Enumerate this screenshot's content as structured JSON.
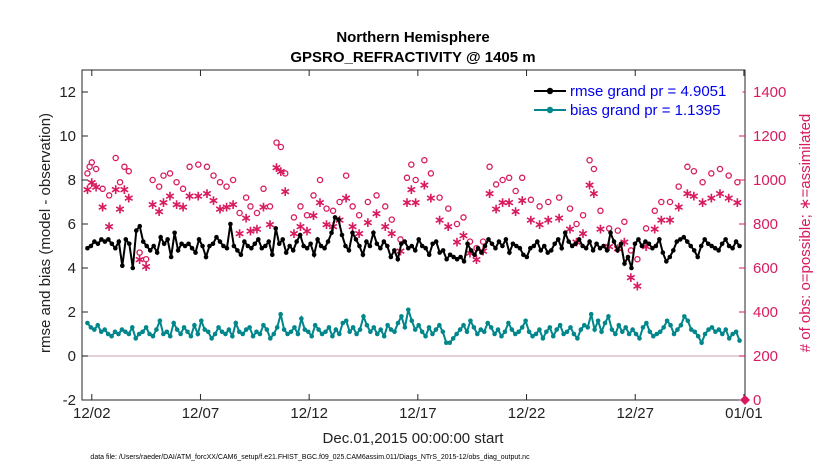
{
  "chart_data": {
    "type": "line",
    "title": "Northern Hemisphere",
    "subtitle": "GPSRO_REFRACTIVITY @ 1405 m",
    "xlabel": "Dec.01,2015 00:00:00 start",
    "ylabel": "rmse and bias (model - observation)",
    "ylabel_right": "# of obs: o=possible; ∗=assimilated",
    "footnote": "data file: /Users/raeder/DAI/ATM_forcXX/CAM6_setup/f.e21.FHIST_BGC.f09_025.CAM6assim.011/Diags_NTrS_2015-12/obs_diag_output.nc",
    "x_ticks": [
      "12/02",
      "12/07",
      "12/12",
      "12/17",
      "12/22",
      "12/27",
      "01/01"
    ],
    "x_tick_days": [
      1,
      6,
      11,
      16,
      21,
      26,
      31
    ],
    "xlim": [
      0.55,
      31.05
    ],
    "ylim": [
      -2,
      13
    ],
    "y_ticks": [
      -2,
      0,
      2,
      4,
      6,
      8,
      10,
      12
    ],
    "ylim_right": [
      0,
      1500
    ],
    "y_ticks_right": [
      0,
      200,
      400,
      600,
      800,
      1000,
      1200,
      1400
    ],
    "zero_line": 0,
    "legend_location": "top-right",
    "colors": {
      "rmse": "#000000",
      "bias": "#00868b",
      "obs": "#d81b60",
      "zero": "#d8b8bf"
    },
    "series": [
      {
        "name": "rmse grand pr = 4.9051",
        "color": "#000000",
        "marker": "filled-circle",
        "values": [
          4.9,
          5.0,
          5.2,
          5.1,
          5.3,
          5.2,
          5.3,
          5.1,
          4.9,
          5.2,
          4.1,
          5.3,
          5.1,
          4.0,
          5.7,
          5.9,
          5.2,
          5.0,
          4.8,
          5.0,
          4.7,
          5.4,
          5.1,
          5.3,
          4.5,
          5.6,
          4.8,
          5.1,
          5.0,
          5.1,
          4.9,
          4.7,
          5.3,
          5.0,
          4.5,
          5.0,
          5.1,
          5.4,
          5.2,
          5.0,
          4.9,
          6.0,
          5.0,
          4.8,
          4.6,
          5.2,
          5.0,
          4.9,
          5.1,
          5.3,
          4.9,
          5.0,
          5.2,
          4.6,
          5.8,
          5.1,
          5.3,
          4.7,
          5.0,
          4.8,
          5.2,
          5.5,
          5.0,
          4.9,
          5.1,
          4.6,
          5.3,
          5.0,
          4.9,
          5.2,
          5.6,
          6.3,
          6.2,
          5.5,
          5.0,
          4.8,
          5.6,
          5.3,
          5.0,
          4.6,
          5.2,
          5.0,
          5.6,
          5.1,
          4.9,
          5.2,
          5.0,
          4.5,
          4.8,
          4.4,
          5.1,
          5.2,
          4.9,
          5.0,
          4.8,
          5.3,
          5.0,
          4.9,
          4.6,
          5.1,
          5.2,
          4.7,
          4.8,
          4.4,
          4.6,
          4.5,
          4.4,
          4.5,
          4.3,
          5.1,
          4.8,
          4.6,
          4.9,
          4.7,
          5.0,
          5.3,
          5.1,
          4.9,
          5.2,
          5.0,
          5.3,
          4.7,
          5.1,
          5.0,
          4.9,
          4.6,
          4.5,
          4.9,
          5.0,
          5.2,
          4.8,
          5.0,
          4.7,
          4.8,
          5.1,
          5.3,
          4.9,
          5.6,
          5.2,
          5.0,
          5.1,
          5.3,
          5.0,
          4.9,
          5.2,
          4.8,
          5.1,
          4.9,
          5.0,
          4.8,
          5.6,
          5.2,
          4.8,
          5.1,
          4.2,
          4.5,
          4.0,
          5.1,
          5.3,
          5.0,
          5.2,
          5.1,
          4.9,
          5.0,
          5.3,
          4.7,
          4.3,
          4.5,
          4.8,
          5.2,
          5.3,
          5.4,
          5.2,
          5.0,
          4.8,
          4.5,
          5.0,
          5.3,
          5.1,
          5.0,
          4.9,
          4.8,
          5.1,
          5.3,
          5.0,
          4.9,
          5.2,
          5.0
        ],
        "x_days": "uniform over xlim"
      },
      {
        "name": "bias grand pr = 1.1395",
        "color": "#00868b",
        "marker": "filled-circle",
        "values": [
          1.5,
          1.3,
          1.2,
          1.4,
          1.1,
          1.2,
          1.0,
          0.9,
          1.1,
          1.0,
          1.2,
          1.1,
          1.0,
          1.3,
          0.8,
          1.0,
          1.1,
          1.3,
          1.0,
          0.9,
          1.2,
          1.6,
          1.0,
          1.1,
          0.9,
          1.5,
          1.2,
          1.0,
          1.3,
          1.1,
          0.9,
          1.4,
          1.0,
          1.6,
          1.2,
          1.1,
          0.8,
          1.0,
          1.3,
          1.1,
          1.0,
          1.2,
          0.9,
          1.5,
          1.1,
          1.0,
          1.2,
          1.3,
          0.9,
          1.1,
          1.0,
          1.4,
          1.2,
          0.8,
          1.0,
          1.3,
          1.9,
          1.2,
          1.0,
          1.1,
          1.3,
          1.0,
          1.7,
          1.2,
          1.1,
          0.9,
          1.4,
          1.2,
          1.0,
          1.1,
          1.3,
          0.9,
          1.2,
          1.0,
          1.5,
          1.6,
          1.1,
          1.3,
          1.0,
          1.2,
          1.8,
          1.4,
          1.1,
          1.3,
          1.0,
          1.2,
          0.9,
          1.4,
          1.2,
          1.1,
          1.5,
          1.8,
          1.3,
          2.1,
          1.6,
          1.2,
          1.4,
          1.1,
          0.9,
          1.3,
          1.0,
          1.2,
          1.4,
          1.1,
          0.6,
          0.6,
          0.8,
          1.0,
          1.2,
          1.4,
          1.1,
          1.6,
          1.3,
          1.0,
          1.2,
          1.1,
          1.5,
          1.3,
          1.0,
          1.2,
          0.9,
          1.1,
          1.5,
          1.2,
          1.0,
          1.1,
          1.3,
          1.6,
          1.1,
          0.9,
          1.0,
          1.2,
          0.8,
          1.1,
          1.3,
          0.9,
          1.2,
          1.4,
          1.0,
          1.1,
          1.3,
          1.0,
          0.8,
          1.2,
          1.4,
          1.3,
          1.9,
          1.2,
          1.6,
          1.1,
          1.5,
          1.8,
          1.2,
          1.0,
          1.4,
          1.1,
          1.3,
          1.0,
          1.2,
          1.0,
          0.8,
          1.3,
          1.5,
          1.1,
          0.9,
          1.0,
          1.1,
          1.3,
          1.6,
          1.4,
          1.0,
          1.2,
          1.4,
          1.8,
          1.6,
          1.2,
          1.1,
          0.9,
          0.6,
          1.0,
          1.2,
          1.3,
          1.1,
          1.2,
          1.0,
          1.2,
          0.8,
          1.0,
          1.1,
          0.7
        ],
        "x_days": "uniform over xlim"
      },
      {
        "name": "# of obs possible",
        "color": "#d81b60",
        "marker": "open-circle",
        "axis": "right",
        "points": [
          [
            0.8,
            1030
          ],
          [
            0.9,
            1060
          ],
          [
            1.0,
            1080
          ],
          [
            1.2,
            1050
          ],
          [
            1.5,
            960
          ],
          [
            1.8,
            930
          ],
          [
            2.1,
            1100
          ],
          [
            2.3,
            990
          ],
          [
            2.5,
            1060
          ],
          [
            2.7,
            1040
          ],
          [
            3.2,
            670
          ],
          [
            3.5,
            640
          ],
          [
            3.8,
            1000
          ],
          [
            4.1,
            970
          ],
          [
            4.3,
            1020
          ],
          [
            4.6,
            1030
          ],
          [
            4.9,
            990
          ],
          [
            5.2,
            960
          ],
          [
            5.5,
            1060
          ],
          [
            5.9,
            1070
          ],
          [
            6.3,
            1060
          ],
          [
            6.6,
            1020
          ],
          [
            6.9,
            990
          ],
          [
            7.2,
            970
          ],
          [
            7.5,
            1000
          ],
          [
            7.8,
            850
          ],
          [
            8.1,
            920
          ],
          [
            8.3,
            880
          ],
          [
            8.6,
            850
          ],
          [
            8.9,
            960
          ],
          [
            9.2,
            880
          ],
          [
            9.5,
            1170
          ],
          [
            9.7,
            1150
          ],
          [
            9.9,
            1030
          ],
          [
            10.3,
            830
          ],
          [
            10.6,
            880
          ],
          [
            10.9,
            840
          ],
          [
            11.2,
            930
          ],
          [
            11.5,
            1000
          ],
          [
            11.8,
            870
          ],
          [
            12.1,
            860
          ],
          [
            12.4,
            900
          ],
          [
            12.7,
            1020
          ],
          [
            13.0,
            880
          ],
          [
            13.3,
            840
          ],
          [
            13.7,
            900
          ],
          [
            14.1,
            930
          ],
          [
            14.5,
            880
          ],
          [
            14.8,
            820
          ],
          [
            15.2,
            730
          ],
          [
            15.5,
            1010
          ],
          [
            15.7,
            1070
          ],
          [
            15.9,
            1000
          ],
          [
            16.3,
            1090
          ],
          [
            16.6,
            1030
          ],
          [
            17.0,
            920
          ],
          [
            17.4,
            870
          ],
          [
            17.8,
            800
          ],
          [
            18.1,
            830
          ],
          [
            18.4,
            720
          ],
          [
            18.7,
            690
          ],
          [
            19.0,
            720
          ],
          [
            19.3,
            1060
          ],
          [
            19.6,
            980
          ],
          [
            19.9,
            1000
          ],
          [
            20.2,
            1010
          ],
          [
            20.5,
            950
          ],
          [
            20.8,
            1010
          ],
          [
            21.2,
            910
          ],
          [
            21.6,
            880
          ],
          [
            22.0,
            900
          ],
          [
            22.5,
            920
          ],
          [
            23.0,
            870
          ],
          [
            23.3,
            800
          ],
          [
            23.6,
            840
          ],
          [
            23.9,
            1090
          ],
          [
            24.1,
            1050
          ],
          [
            24.4,
            860
          ],
          [
            24.8,
            780
          ],
          [
            25.2,
            770
          ],
          [
            25.5,
            810
          ],
          [
            25.8,
            680
          ],
          [
            26.1,
            640
          ],
          [
            26.5,
            780
          ],
          [
            26.9,
            860
          ],
          [
            27.2,
            900
          ],
          [
            27.6,
            900
          ],
          [
            28.0,
            970
          ],
          [
            28.4,
            1060
          ],
          [
            28.7,
            1040
          ],
          [
            29.1,
            990
          ],
          [
            29.5,
            1030
          ],
          [
            29.9,
            1050
          ],
          [
            30.3,
            1020
          ],
          [
            30.7,
            990
          ]
        ]
      },
      {
        "name": "# of obs assimilated",
        "color": "#d81b60",
        "marker": "asterisk",
        "axis": "right",
        "points": [
          [
            0.8,
            960
          ],
          [
            1.0,
            990
          ],
          [
            1.2,
            970
          ],
          [
            1.5,
            880
          ],
          [
            1.8,
            790
          ],
          [
            2.1,
            960
          ],
          [
            2.3,
            870
          ],
          [
            2.5,
            960
          ],
          [
            2.7,
            920
          ],
          [
            3.2,
            640
          ],
          [
            3.5,
            610
          ],
          [
            3.8,
            890
          ],
          [
            4.1,
            860
          ],
          [
            4.3,
            900
          ],
          [
            4.6,
            930
          ],
          [
            4.9,
            890
          ],
          [
            5.2,
            880
          ],
          [
            5.5,
            930
          ],
          [
            5.9,
            930
          ],
          [
            6.3,
            940
          ],
          [
            6.6,
            910
          ],
          [
            6.9,
            870
          ],
          [
            7.2,
            880
          ],
          [
            7.5,
            890
          ],
          [
            7.8,
            760
          ],
          [
            8.1,
            830
          ],
          [
            8.3,
            770
          ],
          [
            8.6,
            780
          ],
          [
            8.9,
            880
          ],
          [
            9.2,
            800
          ],
          [
            9.5,
            1060
          ],
          [
            9.7,
            1040
          ],
          [
            9.9,
            950
          ],
          [
            10.3,
            760
          ],
          [
            10.6,
            790
          ],
          [
            10.9,
            770
          ],
          [
            11.2,
            840
          ],
          [
            11.5,
            900
          ],
          [
            11.8,
            800
          ],
          [
            12.1,
            790
          ],
          [
            12.4,
            820
          ],
          [
            12.7,
            920
          ],
          [
            13.0,
            790
          ],
          [
            13.3,
            760
          ],
          [
            13.7,
            810
          ],
          [
            14.1,
            850
          ],
          [
            14.5,
            790
          ],
          [
            14.8,
            760
          ],
          [
            15.2,
            680
          ],
          [
            15.5,
            900
          ],
          [
            15.7,
            960
          ],
          [
            15.9,
            900
          ],
          [
            16.3,
            980
          ],
          [
            16.6,
            920
          ],
          [
            17.0,
            820
          ],
          [
            17.4,
            790
          ],
          [
            17.8,
            720
          ],
          [
            18.1,
            750
          ],
          [
            18.4,
            670
          ],
          [
            18.7,
            640
          ],
          [
            19.0,
            680
          ],
          [
            19.3,
            940
          ],
          [
            19.6,
            870
          ],
          [
            19.9,
            900
          ],
          [
            20.2,
            900
          ],
          [
            20.5,
            860
          ],
          [
            20.8,
            910
          ],
          [
            21.2,
            820
          ],
          [
            21.6,
            800
          ],
          [
            22.0,
            820
          ],
          [
            22.5,
            830
          ],
          [
            23.0,
            780
          ],
          [
            23.3,
            720
          ],
          [
            23.6,
            760
          ],
          [
            23.9,
            980
          ],
          [
            24.1,
            940
          ],
          [
            24.4,
            780
          ],
          [
            24.8,
            700
          ],
          [
            25.2,
            690
          ],
          [
            25.5,
            720
          ],
          [
            25.8,
            560
          ],
          [
            26.1,
            520
          ],
          [
            26.5,
            700
          ],
          [
            26.9,
            780
          ],
          [
            27.2,
            820
          ],
          [
            27.6,
            820
          ],
          [
            28.0,
            880
          ],
          [
            28.4,
            940
          ],
          [
            28.7,
            930
          ],
          [
            29.1,
            900
          ],
          [
            29.5,
            920
          ],
          [
            29.9,
            940
          ],
          [
            30.3,
            920
          ],
          [
            30.7,
            900
          ]
        ]
      }
    ]
  }
}
